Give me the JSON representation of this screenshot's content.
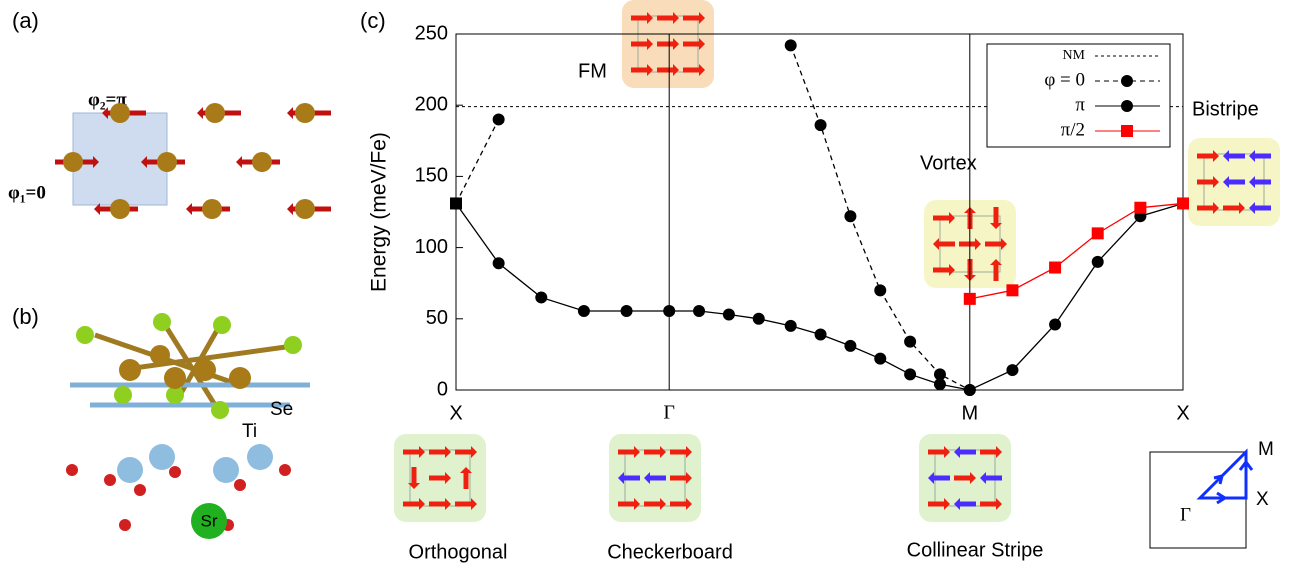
{
  "panel_a": {
    "label": "(a)",
    "phi2": "φ₂=π",
    "phi1": "φ₁=0"
  },
  "panel_b": {
    "label": "(b)",
    "atoms": [
      "Se",
      "Ti",
      "Sr"
    ]
  },
  "chart_data": {
    "type": "line",
    "panel_label": "(c)",
    "y_label": "Energy (meV/Fe)",
    "x": [
      0,
      0.2,
      0.4,
      0.6,
      0.8,
      1,
      1.14,
      1.28,
      1.42,
      1.57,
      1.71,
      1.85,
      1.99,
      2.13,
      2.27,
      2.41,
      2.61,
      2.81,
      3.01,
      3.21,
      3.41
    ],
    "xlim": [
      0,
      3.41
    ],
    "xticks": [
      {
        "value": 0,
        "label": "X"
      },
      {
        "value": 1,
        "label": "Γ"
      },
      {
        "value": 2.41,
        "label": "M"
      },
      {
        "value": 3.41,
        "label": "X"
      }
    ],
    "ylim": [
      0,
      250
    ],
    "yticks": [
      0,
      50,
      100,
      150,
      200,
      250
    ],
    "reference_line": {
      "name": "NM",
      "value": 199
    },
    "series": [
      {
        "name": "φ = 0",
        "color": "#000000",
        "dash": true,
        "marker": "circle",
        "values": [
          131,
          190,
          null,
          null,
          null,
          null,
          null,
          null,
          null,
          242,
          186,
          122,
          70,
          34,
          11,
          0,
          null,
          null,
          null,
          null,
          null
        ]
      },
      {
        "name": "π",
        "color": "#000000",
        "dash": false,
        "marker": "circle",
        "values": [
          131,
          89,
          65,
          55.5,
          55.5,
          55.5,
          55.5,
          53,
          50,
          45,
          39,
          31,
          22,
          11,
          4,
          0,
          14,
          46,
          90,
          122,
          131
        ]
      },
      {
        "name": "π/2",
        "color": "#ff0000",
        "dash": false,
        "marker": "square",
        "values": [
          131,
          null,
          null,
          null,
          null,
          null,
          null,
          null,
          null,
          null,
          null,
          null,
          null,
          null,
          null,
          64,
          70,
          86,
          110,
          128,
          131
        ]
      }
    ],
    "annotations": [
      "FM",
      "Vortex",
      "Bistripe"
    ],
    "configurations": [
      "Orthogonal",
      "Checkerboard",
      "Collinear Stripe"
    ],
    "bz_labels": [
      "M",
      "X",
      "Γ"
    ]
  }
}
